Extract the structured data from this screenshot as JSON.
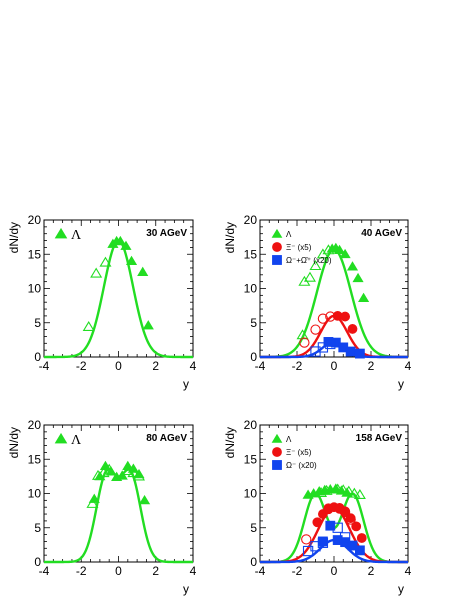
{
  "chart_data": [
    {
      "type": "scatter",
      "energy_label": "30 AGeV",
      "xlabel": "y",
      "ylabel": "dN/dy",
      "xlim": [
        -4,
        4
      ],
      "ylim": [
        0,
        20
      ],
      "xticks": [
        "-4",
        "-2",
        "0",
        "2",
        "4"
      ],
      "yticks": [
        "0",
        "5",
        "10",
        "15",
        "20"
      ],
      "legend": [
        {
          "label": "Λ",
          "marker": "triangle",
          "color": "#22dd22",
          "big": true
        }
      ],
      "series": [
        {
          "name": "Λ",
          "color": "#22dd22",
          "marker": "triangle",
          "fill": true,
          "points": [
            [
              -0.3,
              16.5
            ],
            [
              -0.1,
              16.9
            ],
            [
              0.1,
              16.9
            ],
            [
              0.4,
              16.2
            ],
            [
              0.7,
              14.0
            ],
            [
              1.3,
              12.4
            ],
            [
              1.6,
              4.6
            ]
          ]
        },
        {
          "name": "Λ reflected",
          "color": "#22dd22",
          "marker": "triangle",
          "fill": false,
          "points": [
            [
              -1.6,
              4.4
            ],
            [
              -1.2,
              12.2
            ],
            [
              -0.7,
              13.8
            ]
          ]
        }
      ],
      "curves": [
        {
          "color": "#22dd22",
          "peak": 17.0,
          "sigma": 0.78,
          "sep": 0
        }
      ]
    },
    {
      "type": "scatter",
      "energy_label": "40 AGeV",
      "xlabel": "y",
      "ylabel": "dN/dy",
      "xlim": [
        -4,
        4
      ],
      "ylim": [
        0,
        20
      ],
      "xticks": [
        "-4",
        "-2",
        "0",
        "2",
        "4"
      ],
      "yticks": [
        "0",
        "5",
        "10",
        "15",
        "20"
      ],
      "legend": [
        {
          "label": "Λ",
          "marker": "triangle",
          "color": "#22dd22",
          "big": false
        },
        {
          "label": "Ξ⁻ (x5)",
          "marker": "circle",
          "color": "#ee1111",
          "big": false
        },
        {
          "label": "Ω⁻+Ω̄⁺ (x20)",
          "marker": "square",
          "color": "#1144ee",
          "big": false
        }
      ],
      "series": [
        {
          "name": "Λ",
          "color": "#22dd22",
          "marker": "triangle",
          "fill": true,
          "points": [
            [
              -0.1,
              15.8
            ],
            [
              0.1,
              15.9
            ],
            [
              0.3,
              15.6
            ],
            [
              0.6,
              15.0
            ],
            [
              1.0,
              13.2
            ],
            [
              1.3,
              11.5
            ],
            [
              1.6,
              8.6
            ]
          ]
        },
        {
          "name": "Λ reflected",
          "color": "#22dd22",
          "marker": "triangle",
          "fill": false,
          "points": [
            [
              -1.6,
              11.0
            ],
            [
              -1.3,
              11.6
            ],
            [
              -1.0,
              13.3
            ],
            [
              -0.6,
              15.0
            ],
            [
              -0.3,
              15.6
            ],
            [
              -1.7,
              3.2
            ]
          ]
        },
        {
          "name": "Ξ⁻ (x5)",
          "color": "#ee1111",
          "marker": "circle",
          "fill": true,
          "points": [
            [
              0.2,
              6.0
            ],
            [
              0.6,
              5.9
            ],
            [
              1.0,
              4.1
            ]
          ]
        },
        {
          "name": "Ξ⁻ reflected",
          "color": "#ee1111",
          "marker": "circle",
          "fill": false,
          "points": [
            [
              -1.0,
              4.0
            ],
            [
              -0.6,
              5.6
            ],
            [
              -0.2,
              5.9
            ],
            [
              -1.6,
              2.1
            ]
          ]
        },
        {
          "name": "Ω (x20)",
          "color": "#1144ee",
          "marker": "square",
          "fill": true,
          "points": [
            [
              -0.3,
              2.2
            ],
            [
              0.1,
              2.1
            ],
            [
              0.5,
              1.4
            ],
            [
              0.9,
              0.8
            ],
            [
              1.4,
              0.5
            ]
          ]
        },
        {
          "name": "Ω reflected",
          "color": "#1144ee",
          "marker": "square",
          "fill": false,
          "points": [
            [
              -1.0,
              0.8
            ],
            [
              -0.6,
              1.4
            ],
            [
              -0.2,
              1.9
            ]
          ]
        }
      ],
      "curves": [
        {
          "color": "#22dd22",
          "peak": 15.7,
          "sigma": 0.92,
          "sep": 0
        },
        {
          "color": "#ee1111",
          "peak": 6.0,
          "sigma": 0.72,
          "sep": 0
        },
        {
          "color": "#1144ee",
          "peak": 2.2,
          "sigma": 0.62,
          "sep": 0
        }
      ]
    },
    {
      "type": "scatter",
      "energy_label": "80 AGeV",
      "xlabel": "y",
      "ylabel": "dN/dy",
      "xlim": [
        -4,
        4
      ],
      "ylim": [
        0,
        20
      ],
      "xticks": [
        "-4",
        "-2",
        "0",
        "2",
        "4"
      ],
      "yticks": [
        "0",
        "5",
        "10",
        "15",
        "20"
      ],
      "legend": [
        {
          "label": "Λ",
          "marker": "triangle",
          "color": "#22dd22",
          "big": true
        }
      ],
      "series": [
        {
          "name": "Λ",
          "color": "#22dd22",
          "marker": "triangle",
          "fill": true,
          "points": [
            [
              -1.3,
              9.2
            ],
            [
              -1.0,
              12.5
            ],
            [
              -0.7,
              14.0
            ],
            [
              -0.4,
              13.2
            ],
            [
              -0.1,
              12.4
            ],
            [
              0.2,
              12.6
            ],
            [
              0.5,
              14.0
            ],
            [
              0.8,
              13.6
            ],
            [
              1.1,
              12.8
            ],
            [
              1.4,
              9.0
            ]
          ]
        },
        {
          "name": "Λ reflected",
          "color": "#22dd22",
          "marker": "triangle",
          "fill": false,
          "points": [
            [
              -1.4,
              8.5
            ],
            [
              -1.1,
              12.6
            ],
            [
              -0.8,
              13.0
            ],
            [
              -0.5,
              13.5
            ],
            [
              0.5,
              13.3
            ],
            [
              0.8,
              13.0
            ],
            [
              1.1,
              12.5
            ]
          ]
        }
      ],
      "curves": [
        {
          "color": "#22dd22",
          "peak": 13.5,
          "sigma": 0.55,
          "sep": 0.65
        }
      ]
    },
    {
      "type": "scatter",
      "energy_label": "158 AGeV",
      "xlabel": "y",
      "ylabel": "dN/dy",
      "xlim": [
        -4,
        4
      ],
      "ylim": [
        0,
        20
      ],
      "xticks": [
        "-4",
        "-2",
        "0",
        "2",
        "4"
      ],
      "yticks": [
        "0",
        "5",
        "10",
        "15",
        "20"
      ],
      "legend": [
        {
          "label": "Λ",
          "marker": "triangle",
          "color": "#22dd22",
          "big": false
        },
        {
          "label": "Ξ⁻ (x5)",
          "marker": "circle",
          "color": "#ee1111",
          "big": false
        },
        {
          "label": "Ω⁻ (x20)",
          "marker": "square",
          "color": "#1144ee",
          "big": false
        }
      ],
      "series": [
        {
          "name": "Λ",
          "color": "#22dd22",
          "marker": "triangle",
          "fill": true,
          "points": [
            [
              -1.4,
              9.8
            ],
            [
              -1.1,
              10.0
            ],
            [
              -0.8,
              10.3
            ],
            [
              -0.5,
              10.5
            ],
            [
              -0.2,
              10.6
            ],
            [
              0.1,
              10.7
            ],
            [
              0.4,
              10.4
            ],
            [
              0.7,
              10.1
            ]
          ]
        },
        {
          "name": "Λ reflected",
          "color": "#22dd22",
          "marker": "triangle",
          "fill": false,
          "points": [
            [
              -0.7,
              10.1
            ],
            [
              -0.4,
              10.4
            ],
            [
              0.2,
              10.6
            ],
            [
              0.5,
              10.5
            ],
            [
              0.8,
              10.3
            ],
            [
              1.1,
              10.0
            ],
            [
              1.4,
              9.8
            ]
          ]
        },
        {
          "name": "Ξ⁻ (x5)",
          "color": "#ee1111",
          "marker": "circle",
          "fill": true,
          "points": [
            [
              -0.9,
              5.8
            ],
            [
              -0.6,
              7.0
            ],
            [
              -0.3,
              7.7
            ],
            [
              0.0,
              8.0
            ],
            [
              0.3,
              7.9
            ],
            [
              0.6,
              7.4
            ],
            [
              0.9,
              6.4
            ],
            [
              1.2,
              5.2
            ],
            [
              1.5,
              3.5
            ]
          ]
        },
        {
          "name": "Ξ⁻ reflected",
          "color": "#ee1111",
          "marker": "circle",
          "fill": false,
          "points": [
            [
              -1.5,
              3.3
            ],
            [
              -0.3,
              7.8
            ],
            [
              0.3,
              7.8
            ],
            [
              0.6,
              7.3
            ],
            [
              0.9,
              6.2
            ]
          ]
        },
        {
          "name": "Ω⁻ (x20)",
          "color": "#1144ee",
          "marker": "square",
          "fill": true,
          "points": [
            [
              -0.6,
              3.0
            ],
            [
              -0.2,
              5.3
            ],
            [
              0.2,
              3.2
            ],
            [
              0.6,
              2.9
            ],
            [
              1.0,
              2.4
            ],
            [
              1.4,
              1.7
            ]
          ]
        },
        {
          "name": "Ω⁻ reflected",
          "color": "#1144ee",
          "marker": "square",
          "fill": false,
          "points": [
            [
              -1.4,
              1.6
            ],
            [
              -1.0,
              2.3
            ],
            [
              -0.6,
              2.8
            ],
            [
              0.2,
              5.0
            ],
            [
              0.6,
              3.6
            ]
          ]
        }
      ],
      "curves": [
        {
          "color": "#22dd22",
          "peak": 10.0,
          "sigma": 0.6,
          "sep": 1.0
        },
        {
          "color": "#ee1111",
          "peak": 7.9,
          "sigma": 0.85,
          "sep": 0
        },
        {
          "color": "#1144ee",
          "peak": 3.2,
          "sigma": 0.75,
          "sep": 0
        }
      ]
    }
  ]
}
